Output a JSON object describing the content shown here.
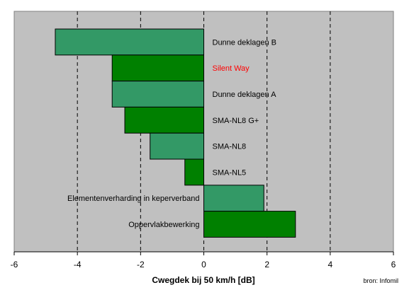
{
  "chart_data": {
    "type": "bar",
    "orientation": "horizontal",
    "categories": [
      "Dunne deklagen B",
      "Silent Way",
      "Dunne deklagen A",
      "SMA-NL8 G+",
      "SMA-NL8",
      "SMA-NL5",
      "Elementenverharding in keperverband",
      "Oppervlakbewerking"
    ],
    "values": [
      -4.7,
      -2.9,
      -2.9,
      -2.5,
      -1.7,
      -0.6,
      1.9,
      2.9
    ],
    "bar_colors": [
      "#339966",
      "#008000",
      "#339966",
      "#008000",
      "#339966",
      "#008000",
      "#339966",
      "#008000"
    ],
    "label_colors": [
      "#000000",
      "#ff0000",
      "#000000",
      "#000000",
      "#000000",
      "#000000",
      "#000000",
      "#000000"
    ],
    "xlabel": "Cwegdek bij 50 km/h [dB]",
    "xlim": [
      -6,
      6
    ],
    "xticks": [
      -6,
      -4,
      -2,
      0,
      2,
      4,
      6
    ],
    "grid": "vertical dashed",
    "plot_background": "#c0c0c0",
    "source_note": "bron: Infomil"
  }
}
